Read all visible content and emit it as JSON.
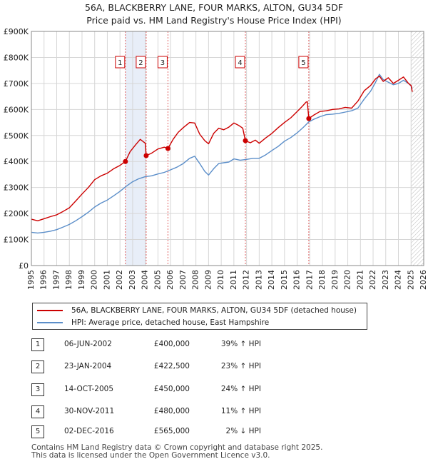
{
  "title": {
    "line1": "56A, BLACKBERRY LANE, FOUR MARKS, ALTON, GU34 5DF",
    "line2": "Price paid vs. HM Land Registry's House Price Index (HPI)"
  },
  "colors": {
    "property": "#cc0000",
    "hpi": "#5b8ec9",
    "band": "#e8eef8",
    "grid": "#d6d6d6",
    "marker_line": "#e06060",
    "hatch": "#9a9a9a"
  },
  "chart_data": {
    "type": "line",
    "title": "Price paid vs. HM Land Registry's House Price Index (HPI)",
    "xlabel": "",
    "ylabel": "",
    "xlim": [
      1995,
      2026
    ],
    "ylim": [
      0,
      900000
    ],
    "x_ticks": [
      "1995",
      "1996",
      "1997",
      "1998",
      "1999",
      "2000",
      "2001",
      "2002",
      "2003",
      "2004",
      "2005",
      "2006",
      "2007",
      "2008",
      "2009",
      "2010",
      "2011",
      "2012",
      "2013",
      "2014",
      "2015",
      "2016",
      "2017",
      "2018",
      "2019",
      "2020",
      "2021",
      "2022",
      "2023",
      "2024",
      "2025",
      "2026"
    ],
    "y_ticks": [
      {
        "value": 0,
        "label": "£0"
      },
      {
        "value": 100000,
        "label": "£100K"
      },
      {
        "value": 200000,
        "label": "£200K"
      },
      {
        "value": 300000,
        "label": "£300K"
      },
      {
        "value": 400000,
        "label": "£400K"
      },
      {
        "value": 500000,
        "label": "£500K"
      },
      {
        "value": 600000,
        "label": "£600K"
      },
      {
        "value": 700000,
        "label": "£700K"
      },
      {
        "value": 800000,
        "label": "£800K"
      },
      {
        "value": 900000,
        "label": "£900K"
      }
    ],
    "grid": true,
    "shaded_band": {
      "from": 2002.43,
      "to": 2004.07
    },
    "future_hatch_from": 2025.0,
    "series": [
      {
        "name": "56A, BLACKBERRY LANE, FOUR MARKS, ALTON, GU34 5DF (detached house)",
        "x": [
          1995,
          1995.5,
          1996,
          1996.5,
          1997,
          1997.5,
          1998,
          1998.5,
          1999,
          1999.5,
          2000,
          2000.5,
          2001,
          2001.5,
          2002,
          2002.43,
          2002.8,
          2003.2,
          2003.6,
          2004.0,
          2004.07,
          2004.5,
          2005,
          2005.5,
          2005.79,
          2006.2,
          2006.6,
          2007,
          2007.5,
          2007.9,
          2008.3,
          2008.7,
          2009.0,
          2009.4,
          2009.8,
          2010.2,
          2010.6,
          2011.0,
          2011.4,
          2011.7,
          2011.91,
          2012.3,
          2012.7,
          2013.0,
          2013.5,
          2014.0,
          2014.5,
          2015.0,
          2015.5,
          2016.0,
          2016.4,
          2016.7,
          2016.8,
          2016.92,
          2017.3,
          2017.8,
          2018.3,
          2018.8,
          2019.3,
          2019.8,
          2020.3,
          2020.8,
          2021.3,
          2021.8,
          2022.2,
          2022.5,
          2022.8,
          2023.2,
          2023.6,
          2024.0,
          2024.4,
          2024.8,
          2025.0,
          2025.1
        ],
        "y": [
          178000,
          172000,
          180000,
          188000,
          195000,
          208000,
          222000,
          248000,
          275000,
          300000,
          330000,
          345000,
          355000,
          372000,
          385000,
          400000,
          438000,
          462000,
          485000,
          470000,
          422500,
          432000,
          448000,
          455000,
          450000,
          485000,
          512000,
          530000,
          550000,
          548000,
          505000,
          480000,
          468000,
          508000,
          528000,
          522000,
          532000,
          548000,
          538000,
          528000,
          480000,
          472000,
          482000,
          470000,
          490000,
          508000,
          530000,
          550000,
          568000,
          592000,
          612000,
          628000,
          630000,
          565000,
          578000,
          592000,
          595000,
          600000,
          602000,
          608000,
          605000,
          632000,
          672000,
          692000,
          718000,
          728000,
          708000,
          722000,
          700000,
          712000,
          725000,
          700000,
          692000,
          668000
        ]
      },
      {
        "name": "HPI: Average price, detached house, East Hampshire",
        "x": [
          1995,
          1995.5,
          1996,
          1996.5,
          1997,
          1997.5,
          1998,
          1998.5,
          1999,
          1999.5,
          2000,
          2000.5,
          2001,
          2001.5,
          2002,
          2002.5,
          2003,
          2003.5,
          2004,
          2004.5,
          2005,
          2005.5,
          2006,
          2006.5,
          2007,
          2007.5,
          2007.9,
          2008.3,
          2008.7,
          2009.0,
          2009.4,
          2009.8,
          2010.2,
          2010.6,
          2011.0,
          2011.5,
          2012.0,
          2012.5,
          2013.0,
          2013.5,
          2014.0,
          2014.5,
          2015.0,
          2015.5,
          2016.0,
          2016.5,
          2016.92,
          2017.3,
          2017.8,
          2018.3,
          2018.8,
          2019.3,
          2019.8,
          2020.3,
          2020.8,
          2021.3,
          2021.8,
          2022.2,
          2022.5,
          2022.8,
          2023.2,
          2023.6,
          2024.0,
          2024.4,
          2024.8,
          2025.0,
          2025.1
        ],
        "y": [
          128000,
          125000,
          128000,
          132000,
          138000,
          148000,
          158000,
          172000,
          188000,
          205000,
          225000,
          240000,
          252000,
          268000,
          285000,
          305000,
          322000,
          334000,
          342000,
          345000,
          352000,
          358000,
          368000,
          378000,
          392000,
          412000,
          420000,
          392000,
          362000,
          348000,
          372000,
          392000,
          395000,
          398000,
          410000,
          405000,
          408000,
          412000,
          412000,
          425000,
          442000,
          458000,
          478000,
          492000,
          510000,
          532000,
          552000,
          562000,
          572000,
          580000,
          582000,
          585000,
          590000,
          595000,
          605000,
          640000,
          670000,
          705000,
          735000,
          715000,
          705000,
          695000,
          700000,
          712000,
          700000,
          690000,
          680000
        ]
      }
    ],
    "sales": [
      {
        "n": "1",
        "x": 2002.43,
        "y": 400000
      },
      {
        "n": "2",
        "x": 2004.07,
        "y": 422500
      },
      {
        "n": "3",
        "x": 2005.79,
        "y": 450000
      },
      {
        "n": "4",
        "x": 2011.91,
        "y": 480000
      },
      {
        "n": "5",
        "x": 2016.92,
        "y": 565000
      }
    ]
  },
  "legend": {
    "property_label": "56A, BLACKBERRY LANE, FOUR MARKS, ALTON, GU34 5DF (detached house)",
    "hpi_label": "HPI: Average price, detached house, East Hampshire"
  },
  "transactions": [
    {
      "n": "1",
      "date": "06-JUN-2002",
      "price": "£400,000",
      "hpi": "39% ↑ HPI"
    },
    {
      "n": "2",
      "date": "23-JAN-2004",
      "price": "£422,500",
      "hpi": "23% ↑ HPI"
    },
    {
      "n": "3",
      "date": "14-OCT-2005",
      "price": "£450,000",
      "hpi": "24% ↑ HPI"
    },
    {
      "n": "4",
      "date": "30-NOV-2011",
      "price": "£480,000",
      "hpi": "11% ↑ HPI"
    },
    {
      "n": "5",
      "date": "02-DEC-2016",
      "price": "£565,000",
      "hpi": "2% ↓ HPI"
    }
  ],
  "footer": {
    "line1": "Contains HM Land Registry data © Crown copyright and database right 2025.",
    "line2": "This data is licensed under the Open Government Licence v3.0."
  }
}
